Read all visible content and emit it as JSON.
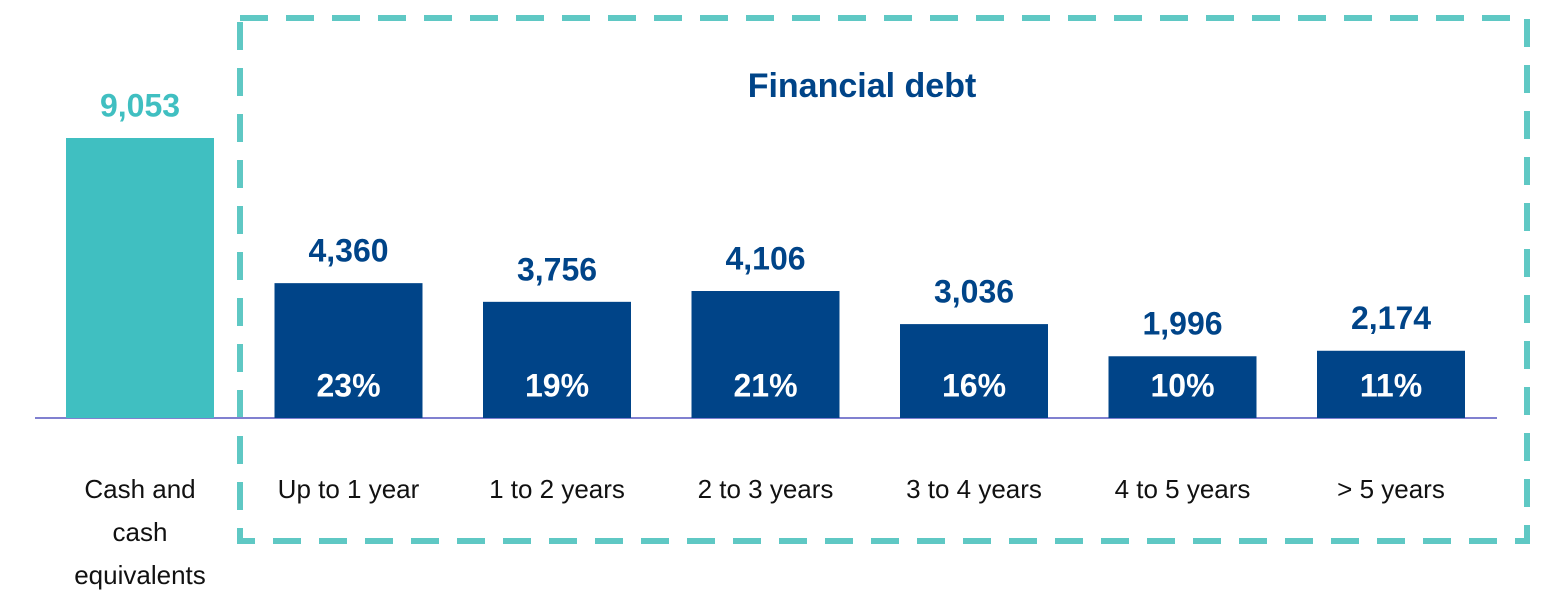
{
  "chart_data": {
    "type": "bar",
    "title": "Financial debt",
    "categories": [
      "Cash and cash equivalents",
      "Up to 1 year",
      "1 to 2 years",
      "2 to 3 years",
      "3 to 4 years",
      "4 to 5 years",
      "> 5 years"
    ],
    "values": [
      9053,
      4360,
      3756,
      4106,
      3036,
      1996,
      2174
    ],
    "value_labels": [
      "9,053",
      "4,360",
      "3,756",
      "4,106",
      "3,036",
      "1,996",
      "2,174"
    ],
    "shares": [
      null,
      23,
      19,
      21,
      16,
      10,
      11
    ],
    "share_labels": [
      null,
      "23%",
      "19%",
      "21%",
      "16%",
      "10%",
      "11%"
    ],
    "colors": [
      "#40bfc1",
      "#004488",
      "#004488",
      "#004488",
      "#004488",
      "#004488",
      "#004488"
    ]
  }
}
